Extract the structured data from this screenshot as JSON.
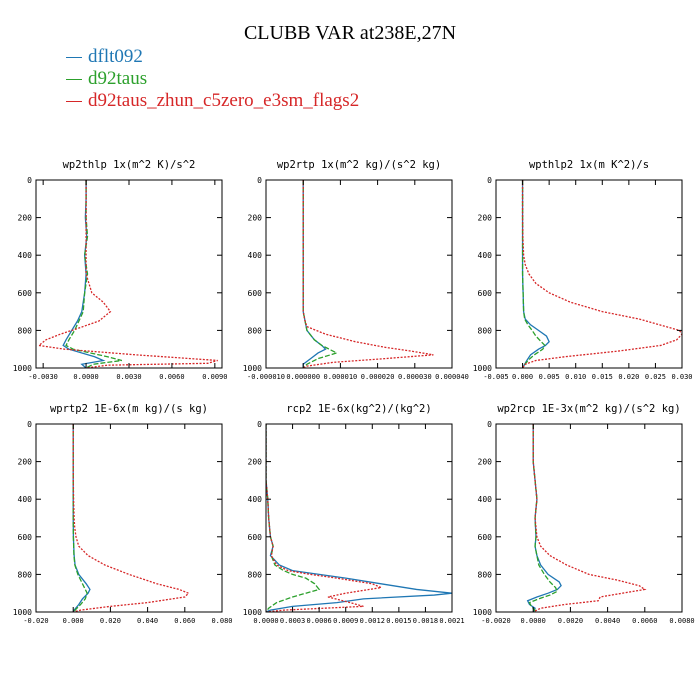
{
  "title": "CLUBB VAR at238E,27N",
  "legend": [
    {
      "name": "dflt092",
      "color": "#1f77b4"
    },
    {
      "name": "d92taus",
      "color": "#2ca02c"
    },
    {
      "name": "d92taus_zhun_c5zero_e3sm_flags2",
      "color": "#d62728"
    }
  ],
  "chart_data": [
    {
      "type": "line",
      "title": "wp2thlp  1x(m^2 K)/s^2",
      "xlim": [
        -0.0035,
        0.0095
      ],
      "ylim": [
        1000,
        0
      ],
      "xticks": [
        -0.003,
        0,
        0.003,
        0.006,
        0.009
      ],
      "xticklabels": [
        "-0.0030",
        "0.0000",
        "0.0030",
        "0.0060",
        "0.0090"
      ],
      "yticks": [
        0,
        200,
        400,
        600,
        800,
        1000
      ],
      "series": [
        {
          "name": "dflt092",
          "line": "solid",
          "y": [
            0,
            100,
            200,
            300,
            400,
            500,
            600,
            700,
            750,
            800,
            850,
            880,
            900,
            940,
            960,
            980,
            1000
          ],
          "x": [
            0,
            0,
            -5e-05,
            5e-05,
            -0.0001,
            0,
            -0.0001,
            -0.0003,
            -0.0006,
            -0.001,
            -0.0014,
            -0.0016,
            -0.0012,
            0.0006,
            0.0012,
            -0.0003,
            0
          ]
        },
        {
          "name": "d92taus",
          "line": "dashed",
          "y": [
            0,
            100,
            200,
            300,
            400,
            500,
            600,
            700,
            750,
            800,
            850,
            880,
            900,
            940,
            960,
            980,
            1000
          ],
          "x": [
            0,
            0,
            0,
            0.0001,
            -0.0001,
            0.0001,
            -0.0001,
            -0.0002,
            -0.0005,
            -0.0008,
            -0.0012,
            -0.0014,
            -0.0009,
            0.0015,
            0.0025,
            0.0005,
            0
          ]
        },
        {
          "name": "d92taus_zhun_c5zero_e3sm_flags2",
          "line": "dotted",
          "y": [
            0,
            100,
            200,
            300,
            400,
            500,
            600,
            650,
            700,
            750,
            790,
            820,
            850,
            880,
            900,
            930,
            960,
            975,
            985,
            1000
          ],
          "x": [
            0,
            0,
            0,
            0,
            0,
            0,
            0.0004,
            0.0012,
            0.0017,
            0.0009,
            -0.0006,
            -0.0018,
            -0.0028,
            -0.0033,
            -0.0015,
            0.0035,
            0.0092,
            0.0085,
            0.0015,
            0
          ]
        }
      ]
    },
    {
      "type": "line",
      "title": "wp2rtp  1x(m^2 kg)/(s^2 kg)",
      "xlim": [
        -1e-05,
        4e-05
      ],
      "ylim": [
        1000,
        0
      ],
      "xticks": [
        -1e-05,
        0,
        1e-05,
        2e-05,
        3e-05,
        4e-05
      ],
      "xticklabels": [
        "-0.000010",
        "0.000000",
        "0.000010",
        "0.000020",
        "0.000030",
        "0.000040"
      ],
      "yticks": [
        0,
        200,
        400,
        600,
        800,
        1000
      ],
      "series": [
        {
          "name": "dflt092",
          "line": "solid",
          "y": [
            0,
            200,
            400,
            600,
            700,
            750,
            800,
            850,
            880,
            900,
            920,
            950,
            980,
            1000
          ],
          "x": [
            0,
            0,
            0,
            0,
            0,
            5e-07,
            1e-06,
            3e-06,
            5e-06,
            6e-06,
            4e-06,
            2e-06,
            0,
            0
          ]
        },
        {
          "name": "d92taus",
          "line": "dashed",
          "y": [
            0,
            200,
            400,
            600,
            700,
            750,
            800,
            850,
            880,
            900,
            920,
            950,
            980,
            1000
          ],
          "x": [
            0,
            0,
            0,
            0,
            0,
            5e-07,
            1e-06,
            3e-06,
            5e-06,
            7e-06,
            9e-06,
            4e-06,
            1e-06,
            0
          ]
        },
        {
          "name": "d92taus_zhun_c5zero_e3sm_flags2",
          "line": "dotted",
          "y": [
            0,
            200,
            400,
            600,
            700,
            750,
            780,
            820,
            860,
            890,
            910,
            930,
            950,
            970,
            990,
            1000
          ],
          "x": [
            0,
            0,
            0,
            0,
            0,
            5e-07,
            1e-06,
            6e-06,
            1.4e-05,
            2.2e-05,
            2.9e-05,
            3.5e-05,
            2.2e-05,
            8e-06,
            1e-06,
            0
          ]
        }
      ]
    },
    {
      "type": "line",
      "title": "wpthlp2  1x(m K^2)/s",
      "xlim": [
        -0.005,
        0.03
      ],
      "ylim": [
        1000,
        0
      ],
      "xticks": [
        -0.005,
        0,
        0.005,
        0.01,
        0.015,
        0.02,
        0.025,
        0.03
      ],
      "xticklabels": [
        "-0.005",
        "0.000",
        "0.005",
        "0.010",
        "0.015",
        "0.020",
        "0.025",
        "0.030"
      ],
      "yticks": [
        0,
        200,
        400,
        600,
        800,
        1000
      ],
      "series": [
        {
          "name": "dflt092",
          "line": "solid",
          "y": [
            0,
            200,
            400,
            500,
            600,
            700,
            740,
            770,
            800,
            830,
            860,
            880,
            900,
            930,
            960,
            990,
            1000
          ],
          "x": [
            0,
            0,
            0,
            0,
            0.0001,
            0.0002,
            0.0005,
            0.0015,
            0.003,
            0.0045,
            0.005,
            0.0043,
            0.003,
            0.0015,
            0.0008,
            0.0002,
            0
          ]
        },
        {
          "name": "d92taus",
          "line": "dashed",
          "y": [
            0,
            200,
            400,
            500,
            600,
            700,
            740,
            770,
            800,
            830,
            860,
            880,
            900,
            930,
            960,
            990,
            1000
          ],
          "x": [
            0,
            0,
            0,
            0,
            0.0001,
            0.0002,
            0.0004,
            0.001,
            0.0018,
            0.0025,
            0.0035,
            0.0042,
            0.0038,
            0.0022,
            0.001,
            0.0002,
            0
          ]
        },
        {
          "name": "d92taus_zhun_c5zero_e3sm_flags2",
          "line": "dotted",
          "y": [
            0,
            200,
            300,
            400,
            450,
            500,
            550,
            600,
            650,
            700,
            740,
            780,
            800,
            820,
            850,
            880,
            910,
            940,
            960,
            980,
            1000
          ],
          "x": [
            0,
            0,
            5e-05,
            0.0002,
            0.0005,
            0.0012,
            0.0025,
            0.005,
            0.009,
            0.015,
            0.022,
            0.027,
            0.0295,
            0.03,
            0.029,
            0.026,
            0.018,
            0.008,
            0.0025,
            0.0005,
            0
          ]
        }
      ]
    },
    {
      "type": "line",
      "title": "wprtp2  1E-6x(m kg)/(s kg)",
      "xlim": [
        -0.02,
        0.08
      ],
      "ylim": [
        1000,
        0
      ],
      "xticks": [
        -0.02,
        0,
        0.02,
        0.04,
        0.06,
        0.08
      ],
      "xticklabels": [
        "-0.020",
        "0.000",
        "0.020",
        "0.040",
        "0.060",
        "0.080"
      ],
      "yticks": [
        0,
        200,
        400,
        600,
        800,
        1000
      ],
      "series": [
        {
          "name": "dflt092",
          "line": "solid",
          "y": [
            0,
            200,
            400,
            500,
            600,
            700,
            750,
            800,
            850,
            880,
            900,
            930,
            960,
            990,
            1000
          ],
          "x": [
            0,
            0,
            0,
            0,
            0.0001,
            0.0005,
            0.001,
            0.003,
            0.007,
            0.009,
            0.008,
            0.005,
            0.003,
            0.0005,
            0
          ]
        },
        {
          "name": "d92taus",
          "line": "dashed",
          "y": [
            0,
            200,
            400,
            500,
            600,
            700,
            750,
            800,
            850,
            880,
            900,
            930,
            960,
            990,
            1000
          ],
          "x": [
            0,
            0,
            0,
            0,
            0.0001,
            0.0004,
            0.0009,
            0.0025,
            0.005,
            0.0065,
            0.0075,
            0.0065,
            0.004,
            0.001,
            0
          ]
        },
        {
          "name": "d92taus_zhun_c5zero_e3sm_flags2",
          "line": "dotted",
          "y": [
            0,
            200,
            300,
            400,
            500,
            550,
            600,
            650,
            700,
            750,
            800,
            850,
            880,
            900,
            920,
            950,
            970,
            990,
            1000
          ],
          "x": [
            0,
            0,
            5e-05,
            0.0002,
            0.0005,
            0.0008,
            0.0015,
            0.003,
            0.008,
            0.017,
            0.03,
            0.045,
            0.057,
            0.062,
            0.06,
            0.04,
            0.02,
            0.004,
            0
          ]
        }
      ]
    },
    {
      "type": "line",
      "title": "rcp2  1E-6x(kg^2)/(kg^2)",
      "xlim": [
        0,
        0.0021
      ],
      "ylim": [
        1000,
        0
      ],
      "xticks": [
        0,
        0.0003,
        0.0006,
        0.0009,
        0.0012,
        0.0015,
        0.0018,
        0.0021
      ],
      "xticklabels": [
        "0.0000",
        "0.0003",
        "0.0006",
        "0.0009",
        "0.0012",
        "0.0015",
        "0.0018",
        "0.0021"
      ],
      "yticks": [
        0,
        200,
        400,
        600,
        800,
        1000
      ],
      "series": [
        {
          "name": "dflt092",
          "line": "solid",
          "y": [
            0,
            300,
            400,
            500,
            600,
            650,
            700,
            750,
            780,
            800,
            820,
            850,
            880,
            900,
            910,
            930,
            950,
            970,
            990,
            1000
          ],
          "x": [
            0,
            0,
            2e-05,
            3e-05,
            5e-05,
            8e-05,
            5e-05,
            0.00015,
            0.0003,
            0.0006,
            0.0009,
            0.0013,
            0.0017,
            0.0021,
            0.0019,
            0.0011,
            0.0008,
            0.0003,
            5e-05,
            0
          ]
        },
        {
          "name": "d92taus",
          "line": "dashed",
          "y": [
            0,
            300,
            400,
            500,
            600,
            650,
            700,
            750,
            780,
            800,
            820,
            850,
            880,
            900,
            920,
            950,
            980,
            1000
          ],
          "x": [
            0,
            0,
            2e-05,
            3e-05,
            5e-05,
            8e-05,
            6e-05,
            0.0001,
            0.0002,
            0.0003,
            0.00045,
            0.00055,
            0.0006,
            0.00045,
            0.0003,
            0.00012,
            3e-05,
            0
          ]
        },
        {
          "name": "d92taus_zhun_c5zero_e3sm_flags2",
          "line": "dotted",
          "y": [
            0,
            300,
            400,
            500,
            600,
            650,
            700,
            750,
            780,
            800,
            820,
            850,
            870,
            900,
            920,
            950,
            970,
            990,
            1000
          ],
          "x": [
            0,
            0,
            2e-05,
            3e-05,
            5e-05,
            8e-05,
            6e-05,
            0.00012,
            0.00025,
            0.0005,
            0.0008,
            0.0012,
            0.0013,
            0.0009,
            0.0007,
            0.00095,
            0.0011,
            0.0002,
            0
          ]
        }
      ]
    },
    {
      "type": "line",
      "title": "wp2rcp  1E-3x(m^2 kg)/(s^2 kg)",
      "xlim": [
        -0.002,
        0.008
      ],
      "ylim": [
        1000,
        0
      ],
      "xticks": [
        -0.002,
        0,
        0.002,
        0.004,
        0.006,
        0.008
      ],
      "xticklabels": [
        "-0.0020",
        "0.0000",
        "0.0020",
        "0.0040",
        "0.0060",
        "0.0080"
      ],
      "yticks": [
        0,
        200,
        400,
        600,
        800,
        1000
      ],
      "series": [
        {
          "name": "dflt092",
          "line": "solid",
          "y": [
            0,
            200,
            300,
            400,
            500,
            600,
            650,
            700,
            750,
            800,
            840,
            860,
            880,
            900,
            920,
            940,
            960,
            980,
            1000
          ],
          "x": [
            0,
            0,
            0.0001,
            0.0002,
            0.0001,
            0.00015,
            0.0001,
            0.0002,
            0.0004,
            0.0008,
            0.0014,
            0.0015,
            0.0013,
            0.0008,
            0.0002,
            -0.0003,
            -0.0002,
            0.0001,
            0
          ]
        },
        {
          "name": "d92taus",
          "line": "dashed",
          "y": [
            0,
            200,
            300,
            400,
            500,
            600,
            650,
            700,
            750,
            800,
            840,
            870,
            890,
            910,
            930,
            950,
            970,
            990,
            1000
          ],
          "x": [
            0,
            0,
            0.0001,
            0.0002,
            0.0001,
            0.00015,
            0.0001,
            0.0002,
            0.0003,
            0.0006,
            0.0009,
            0.0012,
            0.0013,
            0.0009,
            0.0003,
            -0.0002,
            -0.0001,
            0.0001,
            0
          ]
        },
        {
          "name": "d92taus_zhun_c5zero_e3sm_flags2",
          "line": "dotted",
          "y": [
            0,
            200,
            300,
            400,
            500,
            600,
            650,
            700,
            750,
            800,
            830,
            860,
            880,
            900,
            920,
            940,
            960,
            980,
            1000
          ],
          "x": [
            0,
            0,
            0.0001,
            0.0002,
            0.0001,
            0.0002,
            0.0004,
            0.0009,
            0.0018,
            0.003,
            0.0045,
            0.0057,
            0.006,
            0.0048,
            0.0036,
            0.0035,
            0.0017,
            0.0004,
            0
          ]
        }
      ]
    }
  ]
}
